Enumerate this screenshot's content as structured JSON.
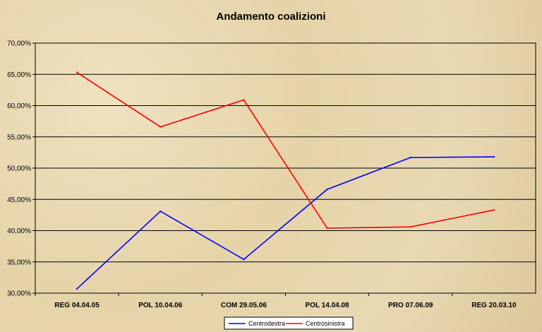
{
  "chart_data": {
    "type": "line",
    "title": "Andamento coalizioni",
    "xlabel": "",
    "ylabel": "",
    "categories": [
      "REG 04.04.05",
      "POL 10.04.06",
      "COM 29.05.06",
      "POL 14.04.08",
      "PRO 07.06.09",
      "REG 20.03.10"
    ],
    "ylim": [
      30,
      70
    ],
    "y_ticks": [
      "30,00%",
      "35,00%",
      "40,00%",
      "45,00%",
      "50,00%",
      "55,00%",
      "60,00%",
      "65,00%",
      "70,00%"
    ],
    "grid": "horizontal",
    "legend_position": "bottom",
    "series": [
      {
        "name": "Centrodestra",
        "color": "#0000ff",
        "values": [
          30.7,
          43.1,
          35.4,
          46.6,
          51.7,
          51.8
        ]
      },
      {
        "name": "Centrosinistra",
        "color": "#ff0000",
        "values": [
          65.3,
          56.6,
          60.9,
          40.4,
          40.6,
          43.3
        ]
      }
    ]
  }
}
